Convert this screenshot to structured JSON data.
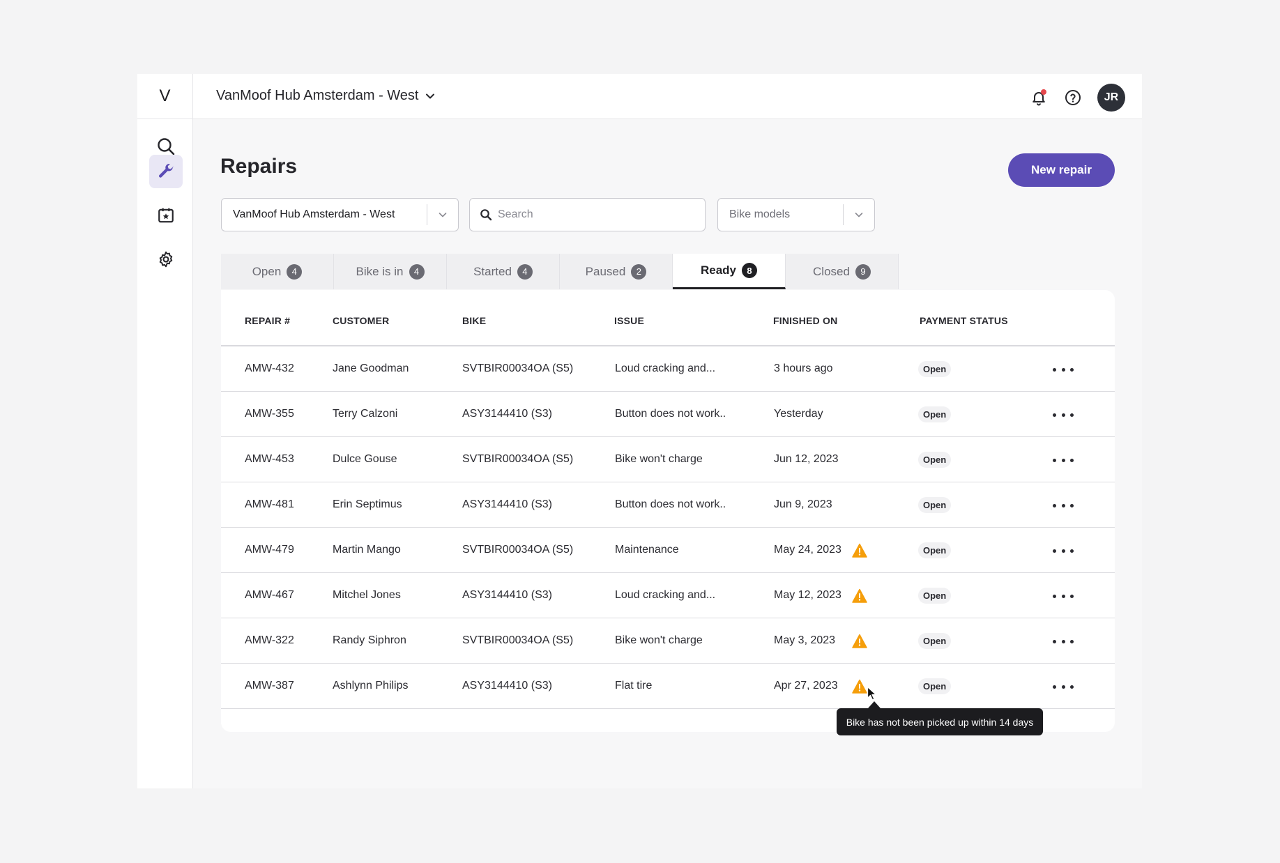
{
  "topbar": {
    "hub_name": "VanMoof Hub Amsterdam - West",
    "avatar_initials": "JR"
  },
  "sidebar": {
    "logo": "V",
    "items": [
      "search",
      "repairs",
      "calendar",
      "settings"
    ]
  },
  "page": {
    "title": "Repairs",
    "new_button": "New repair"
  },
  "filters": {
    "hub_select": "VanMoof Hub Amsterdam - West",
    "search_placeholder": "Search",
    "bike_models_placeholder": "Bike models"
  },
  "tabs": [
    {
      "label": "Open",
      "count": "4"
    },
    {
      "label": "Bike is in",
      "count": "4"
    },
    {
      "label": "Started",
      "count": "4"
    },
    {
      "label": "Paused",
      "count": "2"
    },
    {
      "label": "Ready",
      "count": "8"
    },
    {
      "label": "Closed",
      "count": "9"
    }
  ],
  "table": {
    "headers": [
      "REPAIR #",
      "CUSTOMER",
      "BIKE",
      "ISSUE",
      "FINISHED ON",
      "PAYMENT STATUS"
    ],
    "rows": [
      {
        "id": "AMW-432",
        "customer": "Jane Goodman",
        "bike": "SVTBIR00034OA (S5)",
        "issue": "Loud cracking and...",
        "finished": "3 hours ago",
        "warning": false,
        "payment": "Open"
      },
      {
        "id": "AMW-355",
        "customer": "Terry Calzoni",
        "bike": "ASY3144410 (S3)",
        "issue": "Button does not work..",
        "finished": "Yesterday",
        "warning": false,
        "payment": "Open"
      },
      {
        "id": "AMW-453",
        "customer": "Dulce Gouse",
        "bike": "SVTBIR00034OA (S5)",
        "issue": "Bike won't charge",
        "finished": "Jun 12, 2023",
        "warning": false,
        "payment": "Open"
      },
      {
        "id": "AMW-481",
        "customer": "Erin Septimus",
        "bike": "ASY3144410 (S3)",
        "issue": "Button does not work..",
        "finished": "Jun 9, 2023",
        "warning": false,
        "payment": "Open"
      },
      {
        "id": "AMW-479",
        "customer": "Martin Mango",
        "bike": "SVTBIR00034OA (S5)",
        "issue": "Maintenance",
        "finished": "May 24, 2023",
        "warning": true,
        "payment": "Open"
      },
      {
        "id": "AMW-467",
        "customer": "Mitchel Jones",
        "bike": "ASY3144410 (S3)",
        "issue": "Loud cracking and...",
        "finished": "May 12, 2023",
        "warning": true,
        "payment": "Open"
      },
      {
        "id": "AMW-322",
        "customer": "Randy Siphron",
        "bike": "SVTBIR00034OA (S5)",
        "issue": "Bike won't charge",
        "finished": "May 3, 2023",
        "warning": true,
        "payment": "Open"
      },
      {
        "id": "AMW-387",
        "customer": "Ashlynn Philips",
        "bike": "ASY3144410 (S3)",
        "issue": "Flat tire",
        "finished": "Apr 27, 2023",
        "warning": true,
        "payment": "Open"
      }
    ]
  },
  "tooltip": {
    "text": "Bike has not been picked up within 14 days"
  },
  "colors": {
    "accent": "#5b4cb5",
    "warning": "#f59e0b",
    "notification_dot": "#e5484d"
  }
}
